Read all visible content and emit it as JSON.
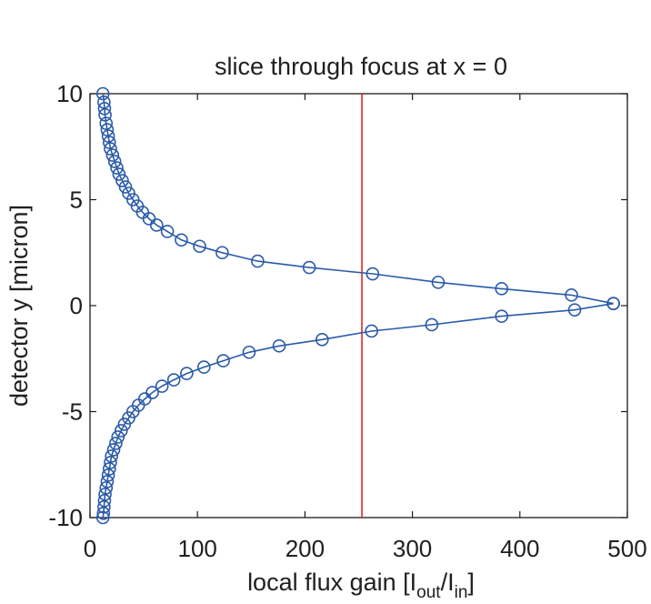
{
  "chart_data": {
    "type": "line",
    "title": "slice through focus at x = 0",
    "xlabel": "local flux gain [I_out/I_in]",
    "xlabel_parts": {
      "main": "local flux gain [I",
      "sub1": "out",
      "mid": "/I",
      "sub2": "in",
      "end": "]"
    },
    "ylabel": "detector y [micron]",
    "xlim": [
      0,
      500
    ],
    "ylim": [
      -10,
      10
    ],
    "xticks": [
      "0",
      "100",
      "200",
      "300",
      "400",
      "500"
    ],
    "yticks": [
      "10",
      "5",
      "0",
      "-5",
      "-10"
    ],
    "grid": false,
    "series": [
      {
        "color": "#2a5aa8",
        "marker": "circle",
        "points": [
          [
            12,
            10.0
          ],
          [
            13,
            9.6
          ],
          [
            13.5,
            9.3
          ],
          [
            14,
            9.0
          ],
          [
            15,
            8.6
          ],
          [
            16,
            8.3
          ],
          [
            17,
            8.0
          ],
          [
            18,
            7.7
          ],
          [
            19,
            7.4
          ],
          [
            21,
            7.1
          ],
          [
            23,
            6.8
          ],
          [
            25,
            6.5
          ],
          [
            27,
            6.2
          ],
          [
            30,
            5.9
          ],
          [
            33,
            5.6
          ],
          [
            36,
            5.3
          ],
          [
            40,
            5.0
          ],
          [
            44,
            4.7
          ],
          [
            49,
            4.4
          ],
          [
            55,
            4.1
          ],
          [
            62,
            3.8
          ],
          [
            72,
            3.5
          ],
          [
            85,
            3.1
          ],
          [
            102,
            2.8
          ],
          [
            123,
            2.5
          ],
          [
            156,
            2.1
          ],
          [
            204,
            1.8
          ],
          [
            263,
            1.5
          ],
          [
            324,
            1.1
          ],
          [
            383,
            0.8
          ],
          [
            448,
            0.5
          ],
          [
            487,
            0.1
          ]
        ]
      },
      {
        "color": "#2a5aa8",
        "marker": "circle",
        "points": [
          [
            487,
            0.1
          ],
          [
            451,
            -0.2
          ],
          [
            383,
            -0.5
          ],
          [
            318,
            -0.9
          ],
          [
            262,
            -1.2
          ],
          [
            216,
            -1.6
          ],
          [
            176,
            -1.9
          ],
          [
            148,
            -2.2
          ],
          [
            124,
            -2.6
          ],
          [
            106,
            -2.9
          ],
          [
            90,
            -3.2
          ],
          [
            78,
            -3.5
          ],
          [
            67,
            -3.8
          ],
          [
            58,
            -4.1
          ],
          [
            51,
            -4.4
          ],
          [
            45,
            -4.7
          ],
          [
            40,
            -5.0
          ],
          [
            36,
            -5.3
          ],
          [
            32,
            -5.6
          ],
          [
            29,
            -5.9
          ],
          [
            26,
            -6.2
          ],
          [
            24,
            -6.5
          ],
          [
            22,
            -6.8
          ],
          [
            20,
            -7.1
          ],
          [
            19,
            -7.4
          ],
          [
            18,
            -7.7
          ],
          [
            17,
            -8.0
          ],
          [
            16,
            -8.3
          ],
          [
            15,
            -8.6
          ],
          [
            14,
            -8.9
          ],
          [
            13.5,
            -9.2
          ],
          [
            13,
            -9.5
          ],
          [
            12.5,
            -9.8
          ],
          [
            12,
            -10.0
          ]
        ]
      }
    ],
    "reference_line": {
      "x": 253,
      "color": "#e01818"
    }
  }
}
